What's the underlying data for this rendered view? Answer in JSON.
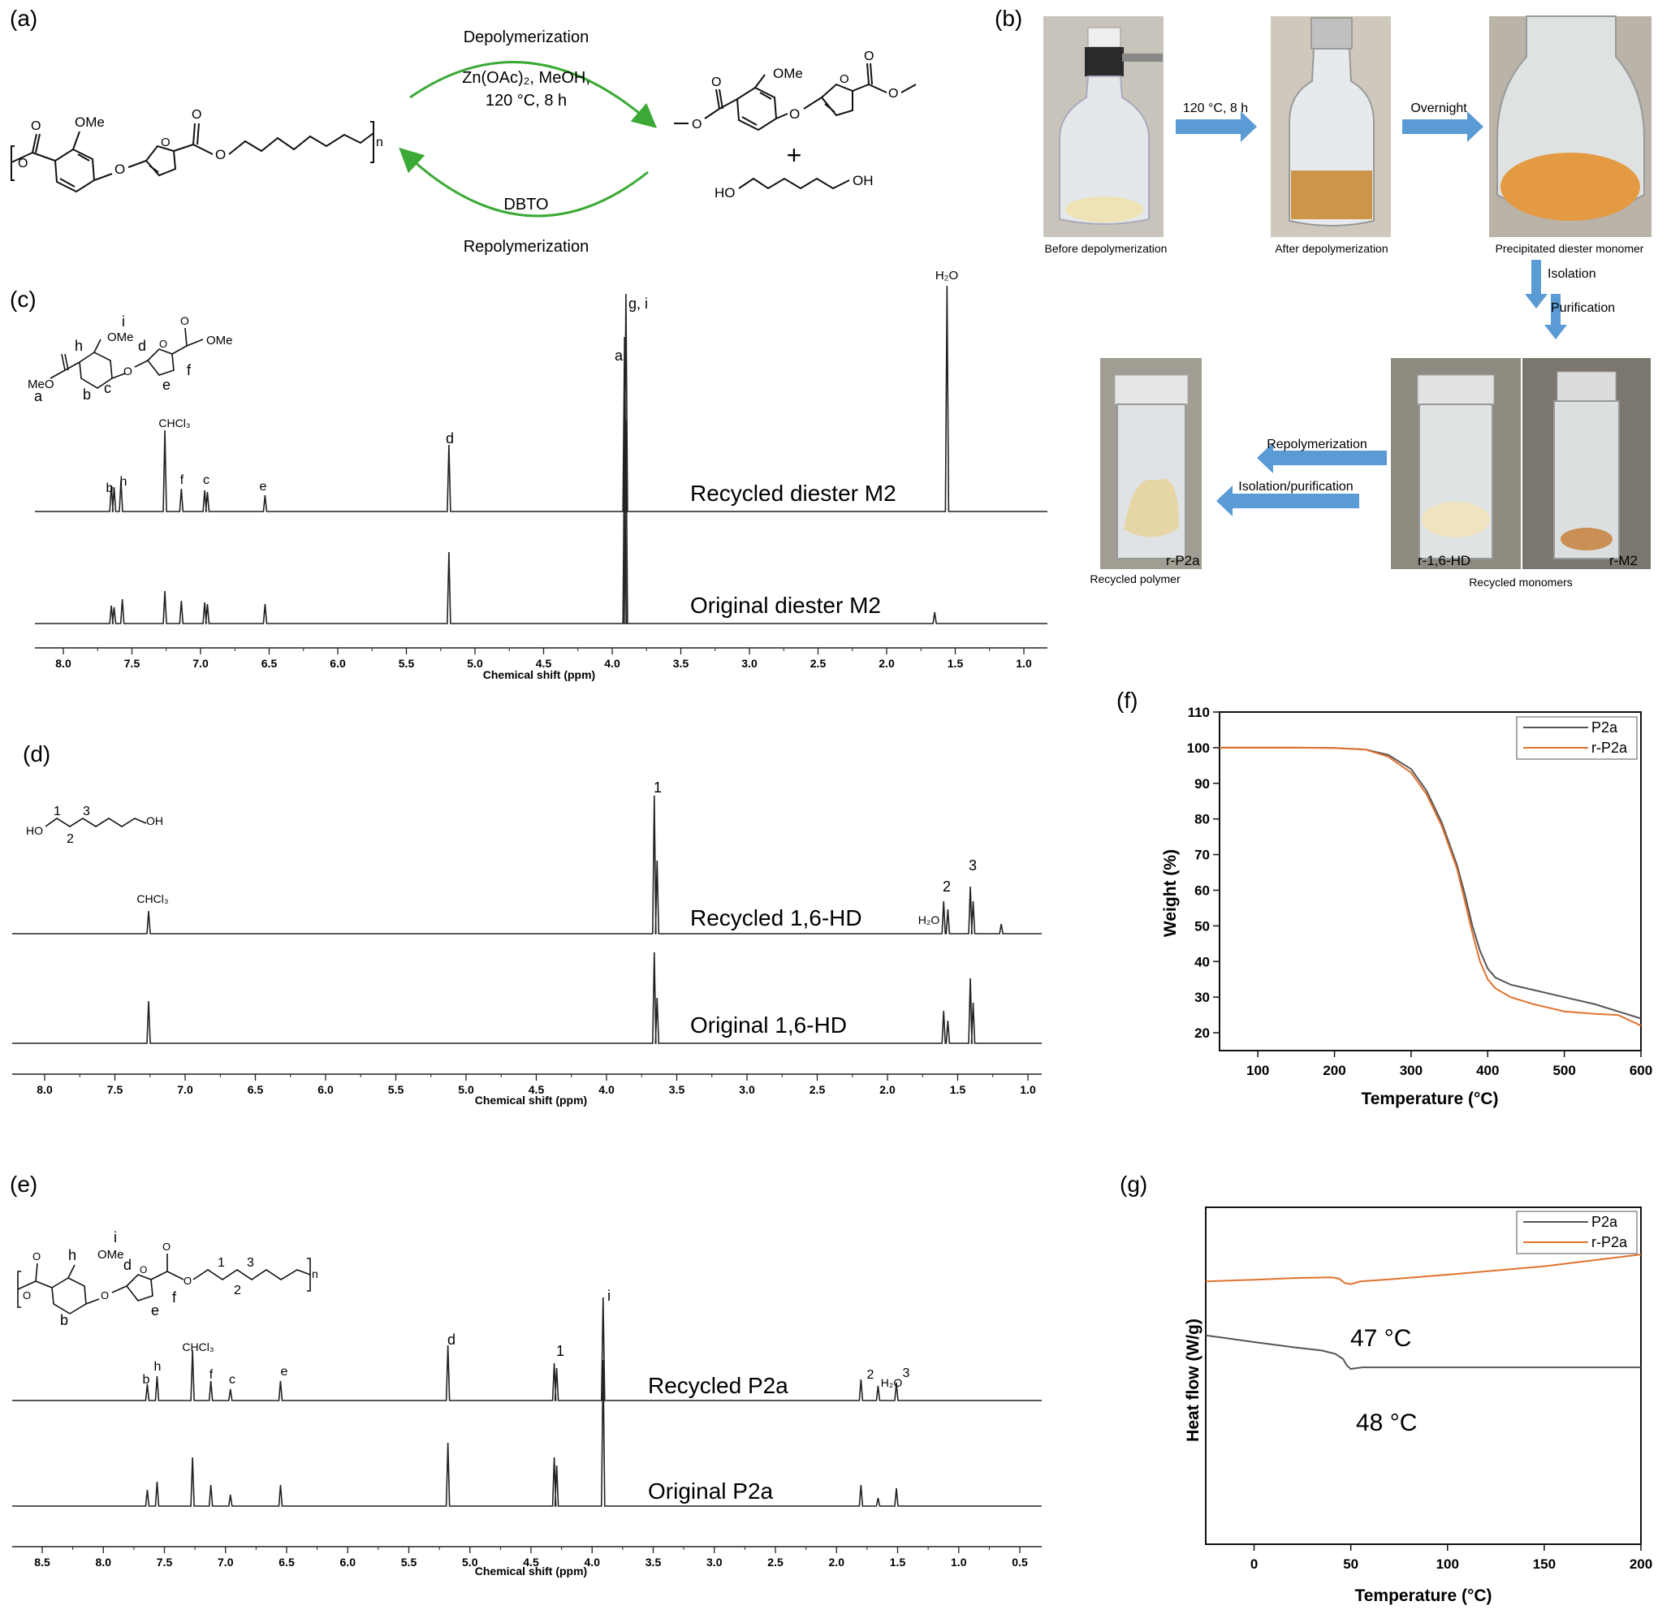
{
  "panels": {
    "a": "(a)",
    "b": "(b)",
    "c": "(c)",
    "d": "(d)",
    "e": "(e)",
    "f": "(f)",
    "g": "(g)"
  },
  "scheme": {
    "depolymerization": "Depolymerization",
    "conditions_1": "Zn(OAc)₂, MeOH,",
    "conditions_2": "120 °C, 8 h",
    "catalyst": "DBTO",
    "repolymerization": "Repolymerization",
    "plus": "+",
    "ome": "OMe",
    "n": "n",
    "ho": "HO",
    "oh": "OH",
    "o": "O"
  },
  "photos": {
    "before": "Before depolymerization",
    "after": "After depolymerization",
    "precipitated": "Precipitated diester monomer",
    "recycled_polymer": "Recycled polymer",
    "recycled_monomers": "Recycled monomers",
    "label_rp2a": "r-P2a",
    "label_rhd": "r-1,6-HD",
    "label_rm2": "r-M2",
    "arrow_1": "120 °C, 8 h",
    "arrow_2": "Overnight",
    "arrow_isolation": "Isolation",
    "arrow_purification": "Purification",
    "arrow_repolymerization": "Repolymerization",
    "arrow_isolation_purification": "Isolation/purification"
  },
  "nmr_c": {
    "xlabel": "Chemical shift (ppm)",
    "ticks": [
      "8.0",
      "7.5",
      "7.0",
      "6.5",
      "6.0",
      "5.5",
      "5.0",
      "4.5",
      "4.0",
      "3.5",
      "3.0",
      "2.5",
      "2.0",
      "1.5",
      "1.0"
    ],
    "trace_top": "Recycled diester M2",
    "trace_bottom": "Original diester M2",
    "peak_labels": {
      "b": "b",
      "h": "h",
      "chcl3": "CHCl₃",
      "f": "f",
      "c": "c",
      "e": "e",
      "d": "d",
      "a": "a",
      "gi": "g, i",
      "h2o": "H₂O"
    }
  },
  "nmr_d": {
    "xlabel": "Chemical shift (ppm)",
    "ticks": [
      "8.0",
      "7.5",
      "7.0",
      "6.5",
      "6.0",
      "5.5",
      "5.0",
      "4.5",
      "4.0",
      "3.5",
      "3.0",
      "2.5",
      "2.0",
      "1.5",
      "1.0"
    ],
    "trace_top": "Recycled 1,6-HD",
    "trace_bottom": "Original 1,6-HD",
    "peak_labels": {
      "chcl3": "CHCl₃",
      "p1": "1",
      "p2": "2",
      "p3": "3",
      "h2o": "H₂O"
    }
  },
  "nmr_e": {
    "xlabel": "Chemical shift (ppm)",
    "ticks": [
      "8.5",
      "8.0",
      "7.5",
      "7.0",
      "6.5",
      "6.0",
      "5.5",
      "5.0",
      "4.5",
      "4.0",
      "3.5",
      "3.0",
      "2.5",
      "2.0",
      "1.5",
      "1.0",
      "0.5"
    ],
    "trace_top": "Recycled P2a",
    "trace_bottom": "Original P2a",
    "peak_labels": {
      "b": "b",
      "h": "h",
      "chcl3": "CHCl₃",
      "f": "f",
      "c": "c",
      "e": "e",
      "d": "d",
      "p1": "1",
      "i": "i",
      "p2": "2",
      "h2o": "H₂O",
      "p3": "3"
    }
  },
  "structure_labels": {
    "a": "a",
    "b": "b",
    "c": "c",
    "d": "d",
    "e": "e",
    "f": "f",
    "h": "h",
    "i": "i",
    "n1": "1",
    "n2": "2",
    "n3": "3",
    "ome": "OMe",
    "meo": "MeO",
    "ho": "HO",
    "oh": "OH",
    "n": "n",
    "o": "O"
  },
  "chart_data": [
    {
      "type": "line",
      "panel": "f",
      "xlabel": "Temperature (°C)",
      "ylabel": "Weight (%)",
      "xlim": [
        50,
        600
      ],
      "ylim": [
        15,
        110
      ],
      "xticks": [
        100,
        200,
        300,
        400,
        500,
        600
      ],
      "yticks": [
        20,
        30,
        40,
        50,
        60,
        70,
        80,
        90,
        100,
        110
      ],
      "legend_position": "top-right",
      "series": [
        {
          "name": "P2a",
          "color": "#555555",
          "x": [
            50,
            150,
            200,
            240,
            270,
            300,
            320,
            340,
            360,
            370,
            380,
            390,
            400,
            410,
            430,
            460,
            500,
            540,
            570,
            600
          ],
          "y": [
            100,
            100,
            99.9,
            99.5,
            98,
            94,
            88,
            79,
            67,
            59,
            50,
            43,
            38,
            35.5,
            33.5,
            32,
            30,
            28,
            26,
            24
          ]
        },
        {
          "name": "r-P2a",
          "color": "#E0722F",
          "x": [
            50,
            150,
            200,
            240,
            270,
            300,
            320,
            340,
            360,
            370,
            380,
            390,
            400,
            410,
            430,
            460,
            500,
            540,
            570,
            600
          ],
          "y": [
            100,
            100,
            99.9,
            99.5,
            97.5,
            93,
            87,
            78,
            66,
            57,
            48,
            40,
            35,
            32.5,
            30,
            28,
            26,
            25.3,
            25,
            22
          ]
        }
      ]
    },
    {
      "type": "line",
      "panel": "g",
      "xlabel": "Temperature (°C)",
      "ylabel": "Heat flow (W/g)",
      "xlim": [
        -25,
        200
      ],
      "xticks": [
        0,
        50,
        100,
        150,
        200
      ],
      "legend_position": "top-right",
      "annotations": [
        "47 °C",
        "48 °C"
      ],
      "series": [
        {
          "name": "P2a",
          "color": "#555555",
          "x": [
            -25,
            0,
            20,
            35,
            42,
            46,
            48,
            50,
            52,
            56,
            70,
            100,
            150,
            200
          ],
          "y": [
            0.62,
            0.6,
            0.585,
            0.575,
            0.565,
            0.55,
            0.53,
            0.52,
            0.522,
            0.525,
            0.525,
            0.525,
            0.525,
            0.525
          ]
        },
        {
          "name": "r-P2a",
          "color": "#E0722F",
          "x": [
            -25,
            0,
            20,
            40,
            44,
            47,
            50,
            55,
            70,
            100,
            150,
            200
          ],
          "y": [
            0.78,
            0.785,
            0.79,
            0.792,
            0.788,
            0.775,
            0.772,
            0.78,
            0.786,
            0.8,
            0.825,
            0.86
          ]
        }
      ]
    }
  ]
}
